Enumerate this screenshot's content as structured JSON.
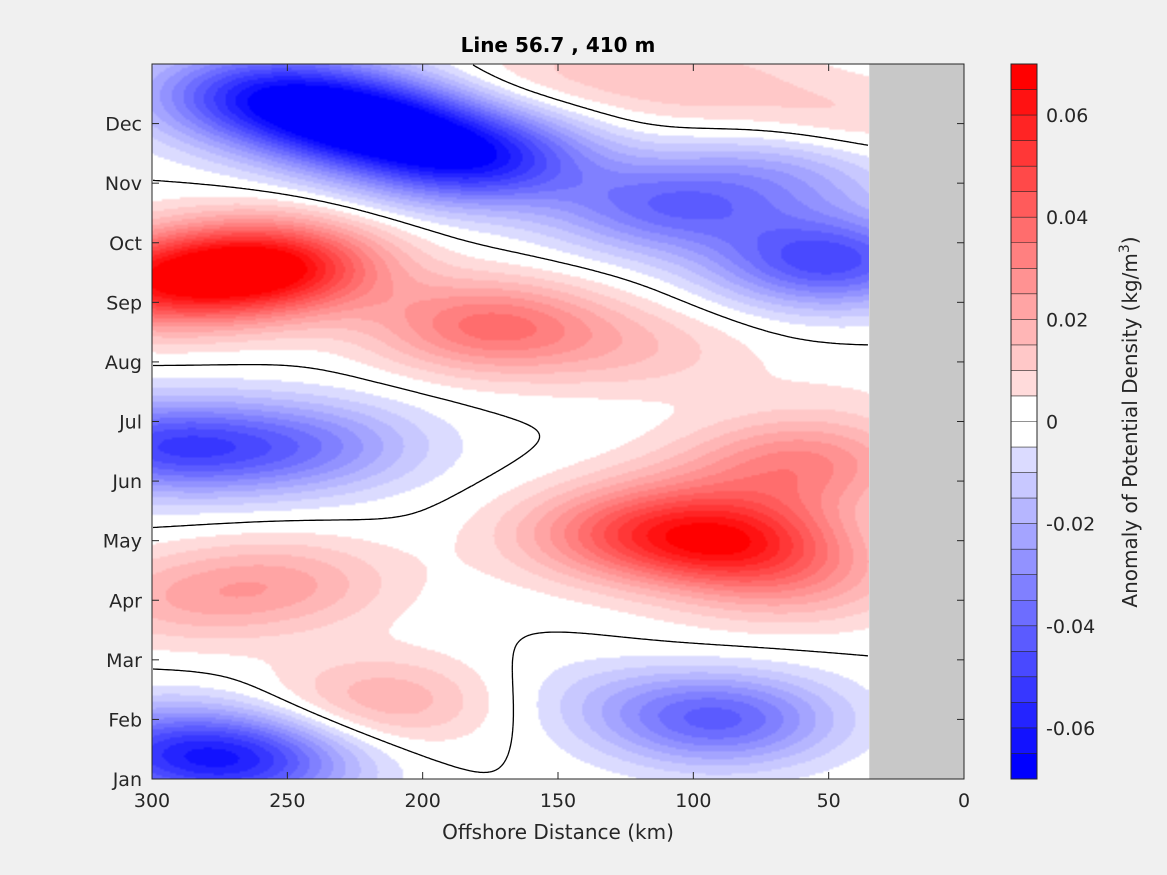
{
  "chart_data": {
    "type": "heatmap",
    "title": "Line 56.7 , 410 m",
    "xlabel": "Offshore Distance (km)",
    "ylabel": "",
    "x_direction": "reversed",
    "xlim": [
      0,
      300
    ],
    "x_ticks": [
      300,
      250,
      200,
      150,
      100,
      50,
      0
    ],
    "y_ticks": [
      "Jan",
      "Feb",
      "Mar",
      "Apr",
      "May",
      "Jun",
      "Jul",
      "Aug",
      "Sep",
      "Oct",
      "Nov",
      "Dec"
    ],
    "colorbar": {
      "label": "Anomaly of Potential Density (kg/m",
      "label_sup": "3",
      "label_end": ")",
      "clim": [
        -0.07,
        0.07
      ],
      "step": 0.005,
      "ticks": [
        "0.06",
        "0.04",
        "0.02",
        "0",
        "-0.02",
        "-0.04",
        "-0.06"
      ],
      "tick_values": [
        0.06,
        0.04,
        0.02,
        0,
        -0.02,
        -0.04,
        -0.06
      ],
      "colormap": "blue-white-red"
    },
    "no_data_region_km": [
      0,
      35
    ],
    "no_data_color": "#c8c8c8",
    "zero_contour": "black",
    "features": [
      {
        "month": 8.6,
        "km": 258,
        "value": 0.066
      },
      {
        "month": 8.3,
        "km": 300,
        "value": 0.045
      },
      {
        "month": 7.6,
        "km": 175,
        "value": 0.036
      },
      {
        "month": 7.2,
        "km": 120,
        "value": 0.012
      },
      {
        "month": 4.0,
        "km": 88,
        "value": 0.052
      },
      {
        "month": 4.1,
        "km": 130,
        "value": 0.025
      },
      {
        "month": 3.3,
        "km": 250,
        "value": 0.018
      },
      {
        "month": 3.0,
        "km": 290,
        "value": 0.015
      },
      {
        "month": 3.3,
        "km": 60,
        "value": 0.018
      },
      {
        "month": 1.3,
        "km": 215,
        "value": 0.02
      },
      {
        "month": 1.8,
        "km": 115,
        "value": 0.006
      },
      {
        "month": 4.8,
        "km": 115,
        "value": 0.01
      },
      {
        "month": 11.0,
        "km": 220,
        "value": -0.064
      },
      {
        "month": 11.5,
        "km": 260,
        "value": -0.05
      },
      {
        "month": 10.4,
        "km": 180,
        "value": -0.055
      },
      {
        "month": 9.6,
        "km": 110,
        "value": -0.035
      },
      {
        "month": 8.7,
        "km": 50,
        "value": -0.048
      },
      {
        "month": 10.2,
        "km": 65,
        "value": -0.02
      },
      {
        "month": 5.6,
        "km": 238,
        "value": -0.022
      },
      {
        "month": 5.6,
        "km": 300,
        "value": -0.038
      },
      {
        "month": 5.5,
        "km": 268,
        "value": -0.015
      },
      {
        "month": 1.0,
        "km": 90,
        "value": -0.04
      },
      {
        "month": 1.5,
        "km": 128,
        "value": -0.012
      },
      {
        "month": 0.3,
        "km": 265,
        "value": -0.045
      },
      {
        "month": 0.5,
        "km": 300,
        "value": -0.03
      },
      {
        "month": 5.0,
        "km": 135,
        "value": -0.003
      },
      {
        "month": 11.7,
        "km": 100,
        "value": 0.012
      },
      {
        "month": 11.0,
        "km": 45,
        "value": 0.012
      },
      {
        "month": 11.8,
        "km": 160,
        "value": 0.01
      },
      {
        "month": 6.6,
        "km": 45,
        "value": 0.003
      },
      {
        "month": 5.3,
        "km": 60,
        "value": 0.03
      }
    ]
  }
}
